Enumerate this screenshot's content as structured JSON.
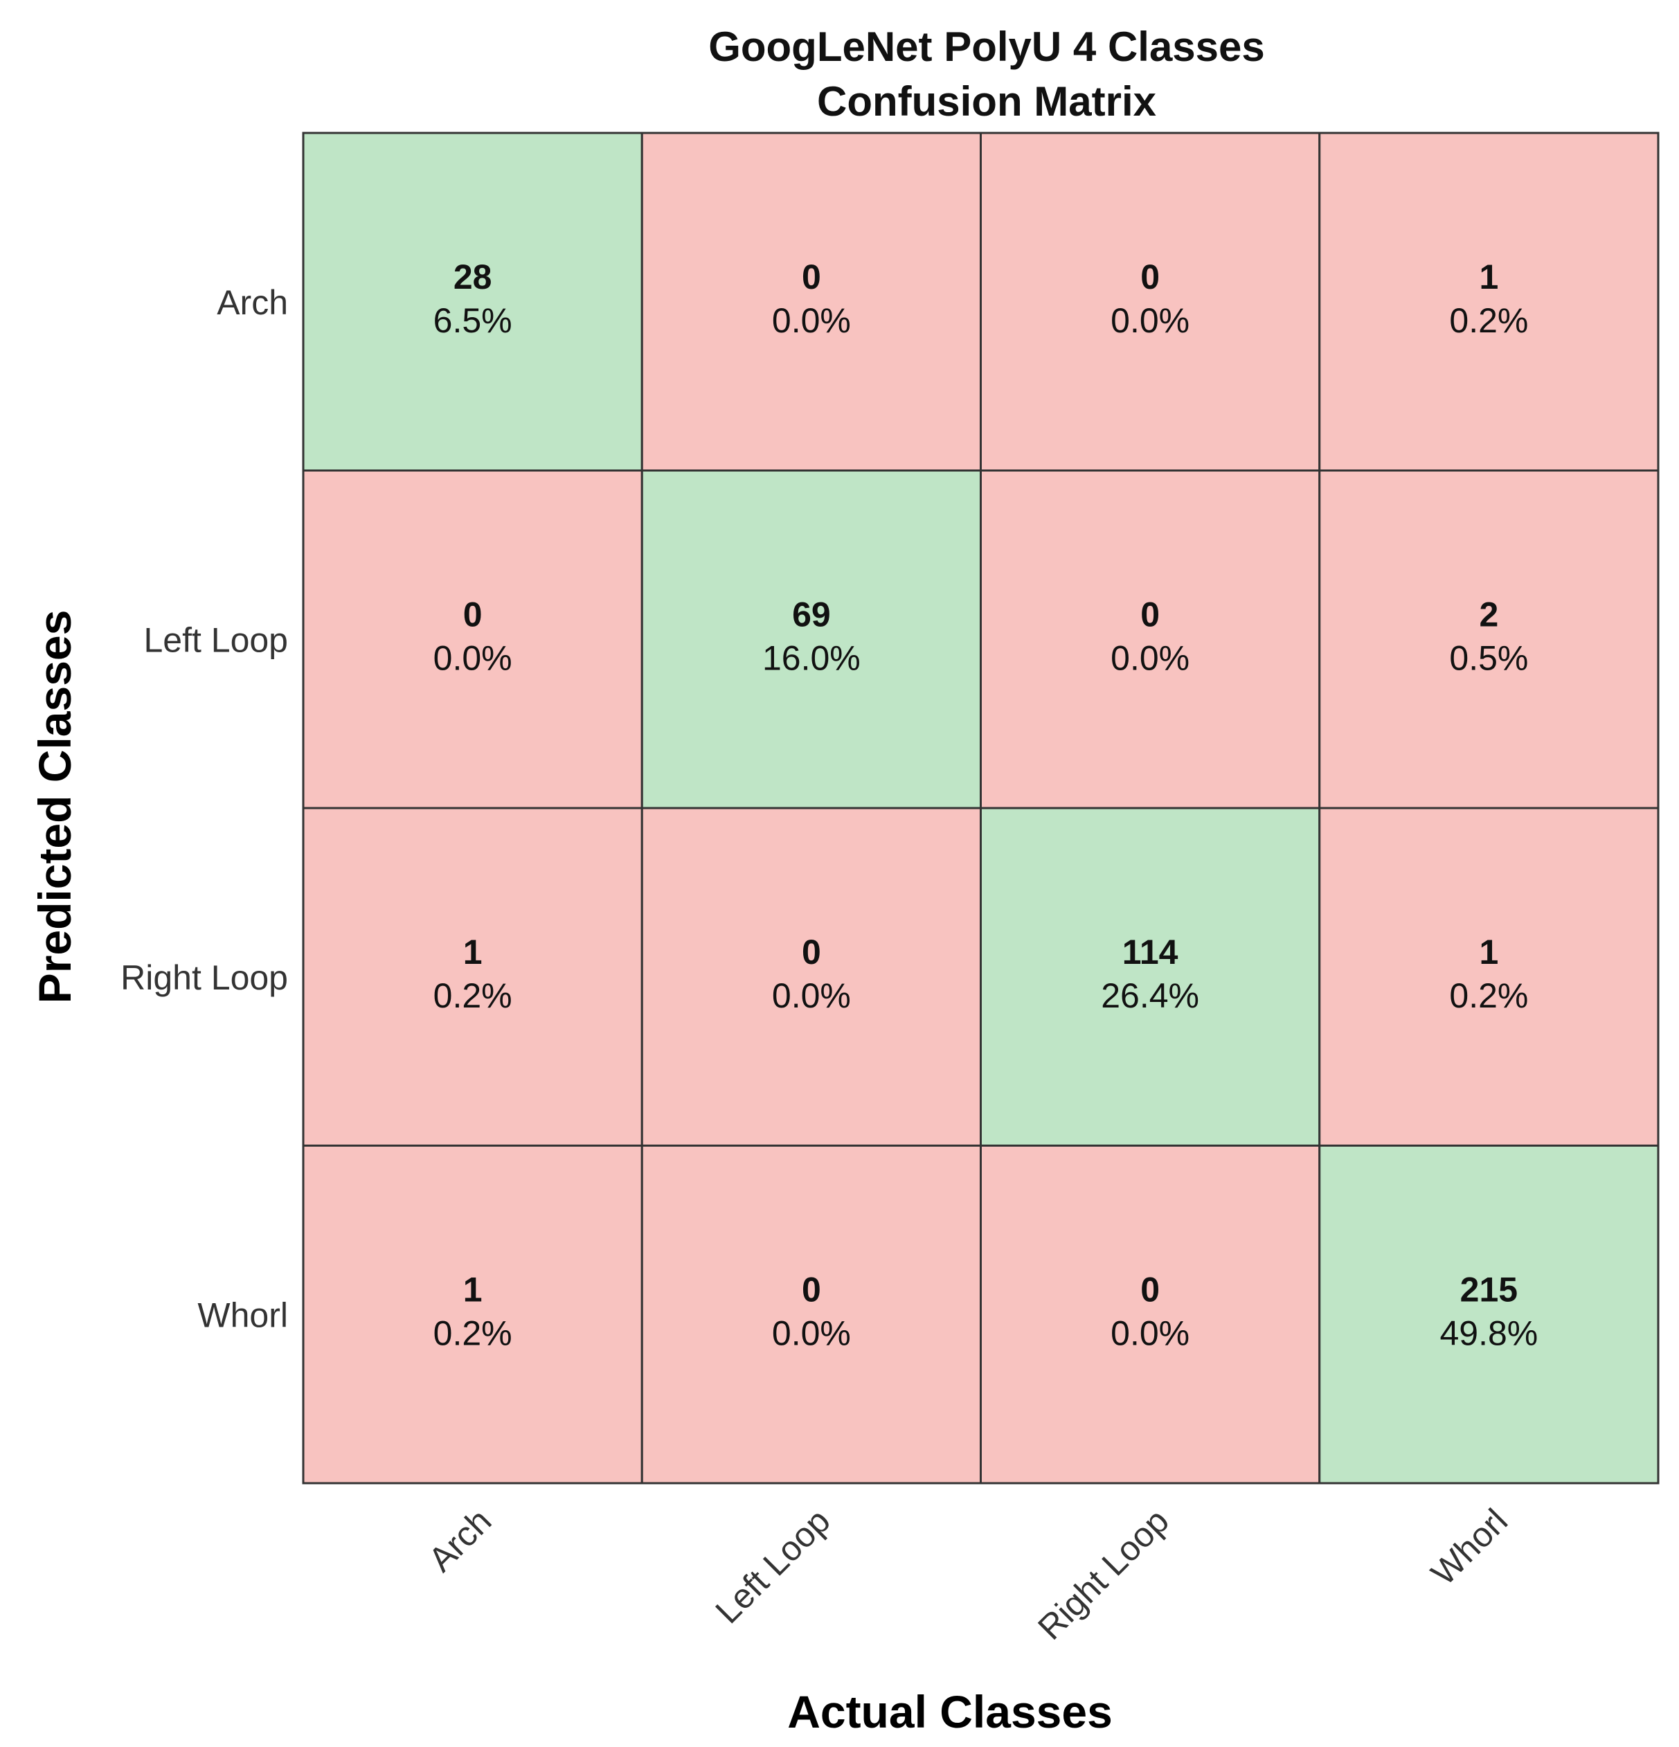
{
  "chart_data": {
    "type": "heatmap",
    "title_lines": [
      "GoogLeNet PolyU 4 Classes",
      "Confusion Matrix"
    ],
    "xlabel": "Actual Classes",
    "ylabel": "Predicted Classes",
    "x_categories": [
      "Arch",
      "Left Loop",
      "Right Loop",
      "Whorl"
    ],
    "y_categories": [
      "Arch",
      "Left Loop",
      "Right Loop",
      "Whorl"
    ],
    "counts": [
      [
        28,
        0,
        0,
        1
      ],
      [
        0,
        69,
        0,
        2
      ],
      [
        1,
        0,
        114,
        1
      ],
      [
        1,
        0,
        0,
        215
      ]
    ],
    "percentages": [
      [
        "6.5%",
        "0.0%",
        "0.0%",
        "0.2%"
      ],
      [
        "0.0%",
        "16.0%",
        "0.0%",
        "0.5%"
      ],
      [
        "0.2%",
        "0.0%",
        "26.4%",
        "0.2%"
      ],
      [
        "0.2%",
        "0.0%",
        "0.0%",
        "49.8%"
      ]
    ],
    "colors": {
      "correct": "#bfe5c6",
      "incorrect": "#f8c3c0",
      "border": "#333333"
    }
  }
}
